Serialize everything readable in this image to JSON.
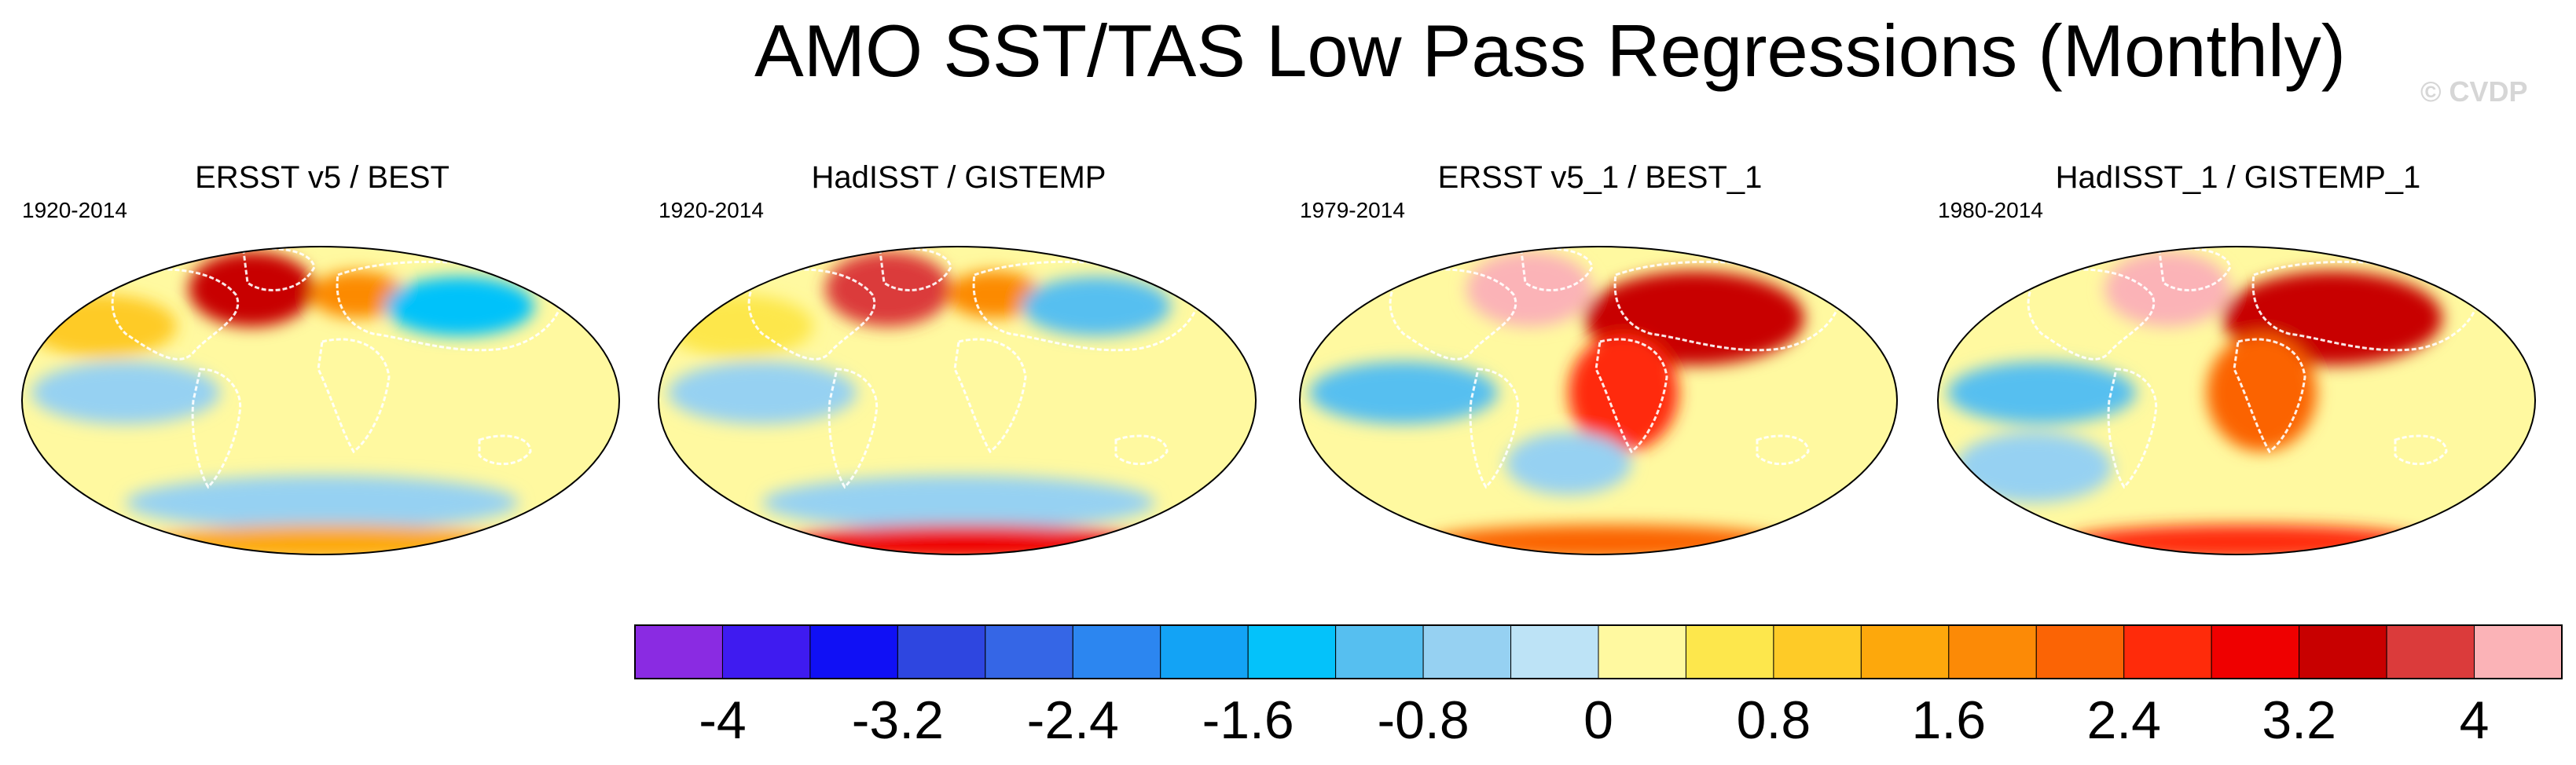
{
  "chart_data": {
    "type": "heatmap",
    "title": "AMO SST/TAS Low Pass Regressions (Monthly)",
    "watermark": "© CVDP",
    "projection": "Robinson (global)",
    "panels": [
      {
        "title": "ERSST v5 / BEST",
        "period": "1920-2014",
        "features": [
          {
            "region": "North Atlantic / Greenland",
            "value": 3.2
          },
          {
            "region": "Northern Europe",
            "value": 1.6
          },
          {
            "region": "Siberia",
            "value": -1.6
          },
          {
            "region": "North Pacific",
            "value": 0.8
          },
          {
            "region": "Tropical Pacific",
            "value": -0.8
          },
          {
            "region": "Southern Ocean",
            "value": -0.8
          },
          {
            "region": "Antarctica",
            "value": 1.2
          }
        ]
      },
      {
        "title": "HadISST / GISTEMP",
        "period": "1920-2014",
        "features": [
          {
            "region": "North Atlantic / Greenland",
            "value": 3.6
          },
          {
            "region": "Northern Europe",
            "value": 1.6
          },
          {
            "region": "Siberia",
            "value": -1.2
          },
          {
            "region": "North Pacific",
            "value": 0.4
          },
          {
            "region": "Tropical Pacific",
            "value": -0.6
          },
          {
            "region": "Southern Ocean",
            "value": -0.8
          },
          {
            "region": "Antarctica",
            "value": 2.8
          }
        ]
      },
      {
        "title": "ERSST v5_1 / BEST_1",
        "period": "1979-2014",
        "features": [
          {
            "region": "North Atlantic / Greenland",
            "value": 4.0
          },
          {
            "region": "Eurasia",
            "value": 3.2
          },
          {
            "region": "Africa",
            "value": 2.4
          },
          {
            "region": "Tropical Pacific",
            "value": -1.2
          },
          {
            "region": "South Atlantic",
            "value": -0.8
          },
          {
            "region": "Antarctica",
            "value": 2.0
          }
        ]
      },
      {
        "title": "HadISST_1 / GISTEMP_1",
        "period": "1980-2014",
        "features": [
          {
            "region": "North Atlantic / Greenland",
            "value": 4.0
          },
          {
            "region": "Eurasia",
            "value": 3.2
          },
          {
            "region": "Africa",
            "value": 2.0
          },
          {
            "region": "Tropical Pacific",
            "value": -1.2
          },
          {
            "region": "South Pacific",
            "value": -0.8
          },
          {
            "region": "Antarctica",
            "value": 2.4
          }
        ]
      }
    ],
    "colorbar": {
      "levels": [
        -4.4,
        -4,
        -3.6,
        -3.2,
        -2.8,
        -2.4,
        -2,
        -1.6,
        -1.2,
        -0.8,
        -0.4,
        0,
        0.4,
        0.8,
        1.2,
        1.6,
        2,
        2.4,
        2.8,
        3.2,
        3.6,
        4,
        4.4
      ],
      "colors": [
        "#8a2be2",
        "#3f1bf0",
        "#1010f5",
        "#2e46e0",
        "#3566e6",
        "#2c86f0",
        "#13a3f5",
        "#04c2fa",
        "#56bff0",
        "#96d1f2",
        "#bde3f6",
        "#fff9a0",
        "#fde74c",
        "#fecb27",
        "#fda80c",
        "#fc8a06",
        "#fb6405",
        "#ff2b0a",
        "#ef0000",
        "#c80000",
        "#db3b3b",
        "#fbb3b7"
      ],
      "tick_values": [
        -4,
        -3.2,
        -2.4,
        -1.6,
        -0.8,
        0,
        0.8,
        1.6,
        2.4,
        3.2,
        4
      ],
      "tick_labels": [
        "-4",
        "-3.2",
        "-2.4",
        "-1.6",
        "-0.8",
        "0",
        "0.8",
        "1.6",
        "2.4",
        "3.2",
        "4"
      ]
    }
  }
}
